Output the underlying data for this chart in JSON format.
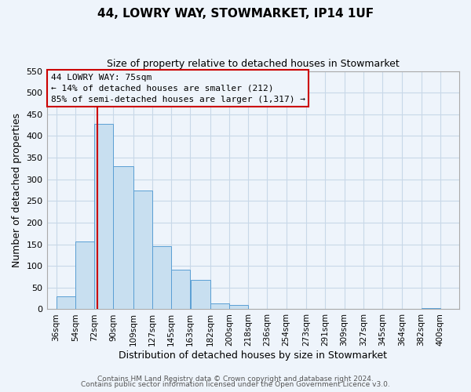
{
  "title": "44, LOWRY WAY, STOWMARKET, IP14 1UF",
  "subtitle": "Size of property relative to detached houses in Stowmarket",
  "xlabel": "Distribution of detached houses by size in Stowmarket",
  "ylabel": "Number of detached properties",
  "bar_left_edges": [
    36,
    54,
    72,
    90,
    109,
    127,
    145,
    163,
    182,
    200,
    218,
    236,
    254,
    273,
    291,
    309,
    327,
    345,
    364,
    382
  ],
  "bar_heights": [
    30,
    157,
    428,
    330,
    274,
    146,
    92,
    68,
    13,
    9,
    0,
    0,
    0,
    0,
    0,
    0,
    0,
    0,
    0,
    2
  ],
  "bar_widths": [
    18,
    18,
    18,
    19,
    18,
    18,
    18,
    19,
    18,
    18,
    18,
    18,
    19,
    18,
    18,
    18,
    18,
    19,
    18,
    18
  ],
  "bar_color": "#c8dff0",
  "bar_edgecolor": "#5a9fd4",
  "property_line_x": 75,
  "property_line_color": "#cc0000",
  "ylim": [
    0,
    550
  ],
  "yticks": [
    0,
    50,
    100,
    150,
    200,
    250,
    300,
    350,
    400,
    450,
    500,
    550
  ],
  "xlim": [
    27,
    418
  ],
  "xtick_labels": [
    "36sqm",
    "54sqm",
    "72sqm",
    "90sqm",
    "109sqm",
    "127sqm",
    "145sqm",
    "163sqm",
    "182sqm",
    "200sqm",
    "218sqm",
    "236sqm",
    "254sqm",
    "273sqm",
    "291sqm",
    "309sqm",
    "327sqm",
    "345sqm",
    "364sqm",
    "382sqm",
    "400sqm"
  ],
  "xtick_positions": [
    36,
    54,
    72,
    90,
    109,
    127,
    145,
    163,
    182,
    200,
    218,
    236,
    254,
    273,
    291,
    309,
    327,
    345,
    364,
    382,
    400
  ],
  "annotation_title": "44 LOWRY WAY: 75sqm",
  "annotation_line1": "← 14% of detached houses are smaller (212)",
  "annotation_line2": "85% of semi-detached houses are larger (1,317) →",
  "footer1": "Contains HM Land Registry data © Crown copyright and database right 2024.",
  "footer2": "Contains public sector information licensed under the Open Government Licence v3.0.",
  "grid_color": "#c8d8e8",
  "background_color": "#eef4fb",
  "title_fontsize": 11,
  "subtitle_fontsize": 9,
  "ylabel_fontsize": 9,
  "xlabel_fontsize": 9,
  "annot_fontsize": 8,
  "footer_fontsize": 6.5
}
